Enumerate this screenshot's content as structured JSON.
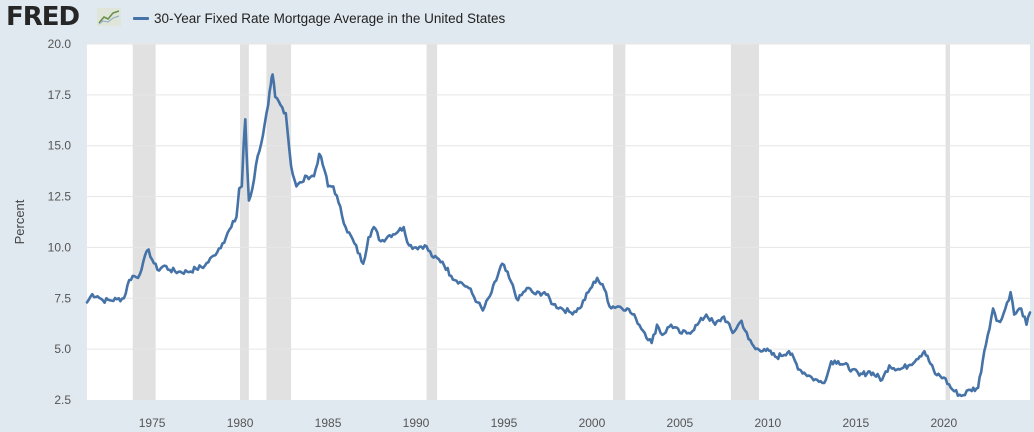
{
  "header": {
    "logo_text": "FRED",
    "logo_icon": "trend-chart-icon",
    "legend_label": "30-Year Fixed Rate Mortgage Average in the United States"
  },
  "colors": {
    "line": "#4572a7",
    "recession": "#e1e1e1",
    "grid": "#e6e6e6",
    "background": "#e1e9f0",
    "plot": "#ffffff"
  },
  "chart_data": {
    "type": "line",
    "title": "30-Year Fixed Rate Mortgage Average in the United States",
    "ylabel": "Percent",
    "xlabel": "",
    "xlim": [
      1971.3,
      2024.9
    ],
    "ylim": [
      2.5,
      20.0
    ],
    "y_ticks": [
      "2.5",
      "5.0",
      "7.5",
      "10.0",
      "12.5",
      "15.0",
      "17.5",
      "20.0"
    ],
    "x_ticks": [
      "1975",
      "1980",
      "1985",
      "1990",
      "1995",
      "2000",
      "2005",
      "2010",
      "2015",
      "2020"
    ],
    "grid": "horizontal",
    "recessions": [
      [
        1973.9,
        1975.2
      ],
      [
        1980.0,
        1980.5
      ],
      [
        1981.5,
        1982.9
      ],
      [
        1990.6,
        1991.2
      ],
      [
        2001.2,
        2001.9
      ],
      [
        2007.9,
        2009.5
      ],
      [
        2020.1,
        2020.35
      ]
    ],
    "series": [
      {
        "name": "30-Year Fixed Rate Mortgage Average in the United States",
        "points": [
          [
            1971.3,
            7.3
          ],
          [
            1971.6,
            7.7
          ],
          [
            1971.9,
            7.6
          ],
          [
            1972.2,
            7.4
          ],
          [
            1972.6,
            7.4
          ],
          [
            1973.0,
            7.45
          ],
          [
            1973.4,
            7.5
          ],
          [
            1973.7,
            8.4
          ],
          [
            1973.9,
            8.6
          ],
          [
            1974.2,
            8.5
          ],
          [
            1974.5,
            9.3
          ],
          [
            1974.8,
            9.9
          ],
          [
            1975.0,
            9.4
          ],
          [
            1975.3,
            8.9
          ],
          [
            1975.7,
            9.1
          ],
          [
            1976.0,
            8.9
          ],
          [
            1976.5,
            8.8
          ],
          [
            1977.0,
            8.8
          ],
          [
            1977.5,
            8.95
          ],
          [
            1978.0,
            9.1
          ],
          [
            1978.5,
            9.6
          ],
          [
            1979.0,
            10.2
          ],
          [
            1979.5,
            11.0
          ],
          [
            1979.8,
            11.5
          ],
          [
            1979.95,
            12.9
          ],
          [
            1980.1,
            13.0
          ],
          [
            1980.2,
            15.0
          ],
          [
            1980.3,
            16.3
          ],
          [
            1980.38,
            14.5
          ],
          [
            1980.5,
            12.3
          ],
          [
            1980.7,
            12.9
          ],
          [
            1981.0,
            14.5
          ],
          [
            1981.3,
            15.5
          ],
          [
            1981.6,
            17.0
          ],
          [
            1981.75,
            18.0
          ],
          [
            1981.85,
            18.5
          ],
          [
            1982.0,
            17.4
          ],
          [
            1982.3,
            17.0
          ],
          [
            1982.6,
            16.6
          ],
          [
            1982.9,
            14.0
          ],
          [
            1983.2,
            13.0
          ],
          [
            1983.5,
            13.2
          ],
          [
            1983.8,
            13.5
          ],
          [
            1984.2,
            13.5
          ],
          [
            1984.5,
            14.6
          ],
          [
            1984.8,
            13.8
          ],
          [
            1985.0,
            13.0
          ],
          [
            1985.3,
            13.0
          ],
          [
            1985.6,
            12.2
          ],
          [
            1986.0,
            11.0
          ],
          [
            1986.5,
            10.2
          ],
          [
            1987.0,
            9.2
          ],
          [
            1987.3,
            10.5
          ],
          [
            1987.6,
            11.0
          ],
          [
            1988.0,
            10.3
          ],
          [
            1988.5,
            10.6
          ],
          [
            1989.0,
            10.8
          ],
          [
            1989.3,
            11.0
          ],
          [
            1989.6,
            10.1
          ],
          [
            1990.0,
            10.0
          ],
          [
            1990.5,
            10.1
          ],
          [
            1991.0,
            9.5
          ],
          [
            1991.5,
            9.3
          ],
          [
            1992.0,
            8.6
          ],
          [
            1992.5,
            8.3
          ],
          [
            1993.0,
            8.0
          ],
          [
            1993.5,
            7.3
          ],
          [
            1993.8,
            6.9
          ],
          [
            1994.3,
            7.8
          ],
          [
            1994.9,
            9.2
          ],
          [
            1995.3,
            8.5
          ],
          [
            1995.8,
            7.4
          ],
          [
            1996.3,
            8.0
          ],
          [
            1996.8,
            7.7
          ],
          [
            1997.3,
            7.8
          ],
          [
            1997.8,
            7.2
          ],
          [
            1998.3,
            7.0
          ],
          [
            1998.8,
            6.8
          ],
          [
            1999.3,
            7.0
          ],
          [
            1999.8,
            7.8
          ],
          [
            2000.3,
            8.5
          ],
          [
            2000.8,
            7.8
          ],
          [
            2001.0,
            7.1
          ],
          [
            2001.5,
            7.1
          ],
          [
            2002.0,
            7.0
          ],
          [
            2002.5,
            6.5
          ],
          [
            2003.0,
            5.8
          ],
          [
            2003.4,
            5.3
          ],
          [
            2003.7,
            6.2
          ],
          [
            2004.0,
            5.7
          ],
          [
            2004.5,
            6.2
          ],
          [
            2005.0,
            5.8
          ],
          [
            2005.5,
            5.8
          ],
          [
            2006.0,
            6.2
          ],
          [
            2006.5,
            6.7
          ],
          [
            2007.0,
            6.2
          ],
          [
            2007.5,
            6.6
          ],
          [
            2008.0,
            5.8
          ],
          [
            2008.5,
            6.4
          ],
          [
            2008.9,
            5.5
          ],
          [
            2009.3,
            5.0
          ],
          [
            2009.8,
            5.0
          ],
          [
            2010.5,
            4.6
          ],
          [
            2011.2,
            4.9
          ],
          [
            2011.8,
            4.0
          ],
          [
            2012.5,
            3.6
          ],
          [
            2012.9,
            3.4
          ],
          [
            2013.3,
            3.5
          ],
          [
            2013.6,
            4.4
          ],
          [
            2014.0,
            4.4
          ],
          [
            2014.8,
            4.0
          ],
          [
            2015.2,
            3.7
          ],
          [
            2015.8,
            3.9
          ],
          [
            2016.5,
            3.5
          ],
          [
            2016.9,
            4.2
          ],
          [
            2017.5,
            4.0
          ],
          [
            2018.0,
            4.2
          ],
          [
            2018.9,
            4.9
          ],
          [
            2019.5,
            3.8
          ],
          [
            2020.0,
            3.6
          ],
          [
            2020.5,
            3.0
          ],
          [
            2021.0,
            2.7
          ],
          [
            2021.5,
            3.0
          ],
          [
            2021.95,
            3.1
          ],
          [
            2022.3,
            4.9
          ],
          [
            2022.5,
            5.7
          ],
          [
            2022.8,
            7.0
          ],
          [
            2023.0,
            6.4
          ],
          [
            2023.3,
            6.5
          ],
          [
            2023.8,
            7.8
          ],
          [
            2024.0,
            6.7
          ],
          [
            2024.4,
            7.0
          ],
          [
            2024.7,
            6.2
          ],
          [
            2024.9,
            6.8
          ]
        ]
      }
    ]
  }
}
